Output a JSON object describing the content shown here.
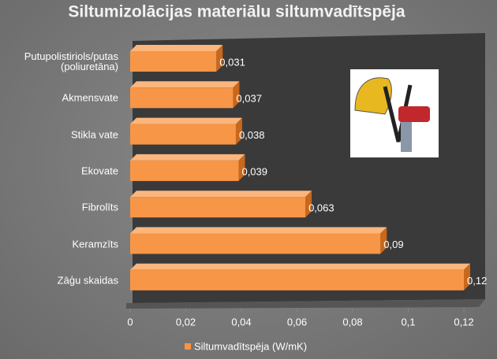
{
  "chart_data": {
    "type": "bar",
    "orientation": "horizontal",
    "title": "Siltumizolācijas materiālu siltumvadītspēja",
    "categories": [
      "Putupolistiriols/putas\n(poliuretāna)",
      "Akmensvate",
      "Stikla vate",
      "Ekovate",
      "Fibrolīts",
      "Keramzīts",
      "Zāģu skaidas"
    ],
    "series": [
      {
        "name": "Siltumvadītspēja (W/mK)",
        "color": "#f79646",
        "values": [
          0.031,
          0.037,
          0.038,
          0.039,
          0.063,
          0.09,
          0.12
        ],
        "value_labels": [
          "0,031",
          "0,037",
          "0,038",
          "0,039",
          "0,063",
          "0,09",
          "0,12"
        ]
      }
    ],
    "xlim": [
      0,
      0.12
    ],
    "xticks": [
      0,
      {
        "value": 0.02,
        "label": "0,02"
      },
      {
        "value": 0.04,
        "label": "0,04"
      },
      {
        "value": 0.06,
        "label": "0,06"
      },
      {
        "value": 0.08,
        "label": "0,08"
      },
      {
        "value": 0.1,
        "label": "0,1"
      },
      {
        "value": 0.12,
        "label": "0,12"
      }
    ],
    "legend": "bottom"
  }
}
